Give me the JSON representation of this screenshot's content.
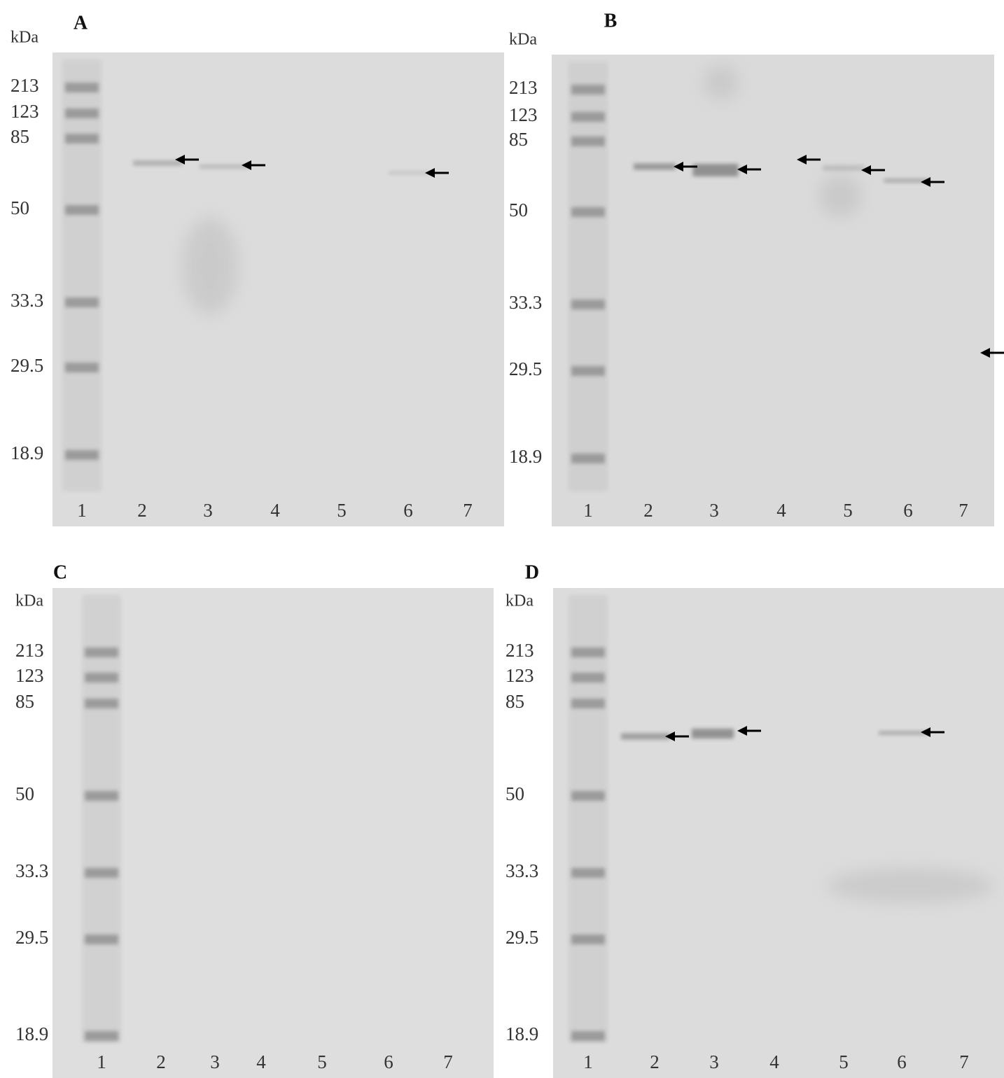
{
  "panels": [
    {
      "label": "A",
      "unit": "kDa",
      "markers": [
        "213",
        "123",
        "85",
        "50",
        "33.3",
        "29.5",
        "18.9"
      ],
      "lanes": [
        "1",
        "2",
        "3",
        "4",
        "5",
        "6",
        "7"
      ]
    },
    {
      "label": "B",
      "unit": "kDa",
      "markers": [
        "213",
        "123",
        "85",
        "50",
        "33.3",
        "29.5",
        "18.9"
      ],
      "lanes": [
        "1",
        "2",
        "3",
        "4",
        "5",
        "6",
        "7"
      ]
    },
    {
      "label": "C",
      "unit": "kDa",
      "markers": [
        "213",
        "123",
        "85",
        "50",
        "33.3",
        "29.5",
        "18.9"
      ],
      "lanes": [
        "1",
        "2",
        "3",
        "4",
        "5",
        "6",
        "7"
      ]
    },
    {
      "label": "D",
      "unit": "kDa",
      "markers": [
        "213",
        "123",
        "85",
        "50",
        "33.3",
        "29.5",
        "18.9"
      ],
      "lanes": [
        "1",
        "2",
        "3",
        "4",
        "5",
        "6",
        "7"
      ]
    }
  ]
}
